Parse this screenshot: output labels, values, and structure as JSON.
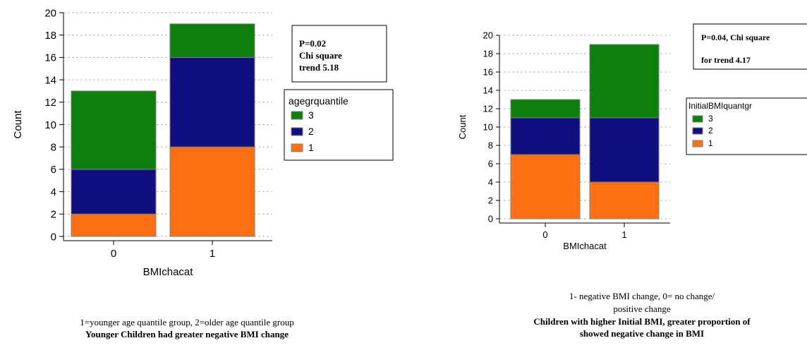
{
  "chart_data": [
    {
      "type": "bar",
      "stacked": true,
      "xlabel": "BMIchacat",
      "ylabel": "Count",
      "ylim": [
        0,
        20
      ],
      "yticks": [
        0,
        2,
        4,
        6,
        8,
        10,
        12,
        14,
        16,
        18,
        20
      ],
      "categories": [
        "0",
        "1"
      ],
      "series": [
        {
          "name": "1",
          "values": [
            2,
            8
          ],
          "color": "#fe7014"
        },
        {
          "name": "2",
          "values": [
            4,
            8
          ],
          "color": "#0f0f7f"
        },
        {
          "name": "3",
          "values": [
            7,
            3
          ],
          "color": "#0c7f0c"
        }
      ],
      "legend": {
        "title": "agegrquantile",
        "placement": "right"
      },
      "grid": true,
      "annotation": [
        "P=0.02",
        "Chi square",
        "trend 5.18"
      ],
      "caption_lines": [
        "1=younger age quantile group, 2=older age quantile group"
      ],
      "caption_bold_lines": [
        "Younger  Children had greater negative  BMI change"
      ]
    },
    {
      "type": "bar",
      "stacked": true,
      "xlabel": "BMIchacat",
      "ylabel": "Count",
      "ylim": [
        0,
        20
      ],
      "yticks": [
        0,
        2,
        4,
        6,
        8,
        10,
        12,
        14,
        16,
        18,
        20
      ],
      "categories": [
        "0",
        "1"
      ],
      "series": [
        {
          "name": "1",
          "values": [
            7,
            4
          ],
          "color": "#fe7014"
        },
        {
          "name": "2",
          "values": [
            4,
            7
          ],
          "color": "#0f0f7f"
        },
        {
          "name": "3",
          "values": [
            2,
            8
          ],
          "color": "#0c7f0c"
        }
      ],
      "legend": {
        "title": "InitialBMIquantgr",
        "placement": "right"
      },
      "grid": true,
      "annotation": [
        "P=0.04, Chi square",
        "for trend 4.17"
      ],
      "caption_lines": [
        "1- negative BMI  change, 0=  no change/",
        "positive change"
      ],
      "caption_bold_lines": [
        "Children with  higher Initial  BMI,  greater proportion  of",
        "showed  negative  change in BMI"
      ]
    }
  ]
}
